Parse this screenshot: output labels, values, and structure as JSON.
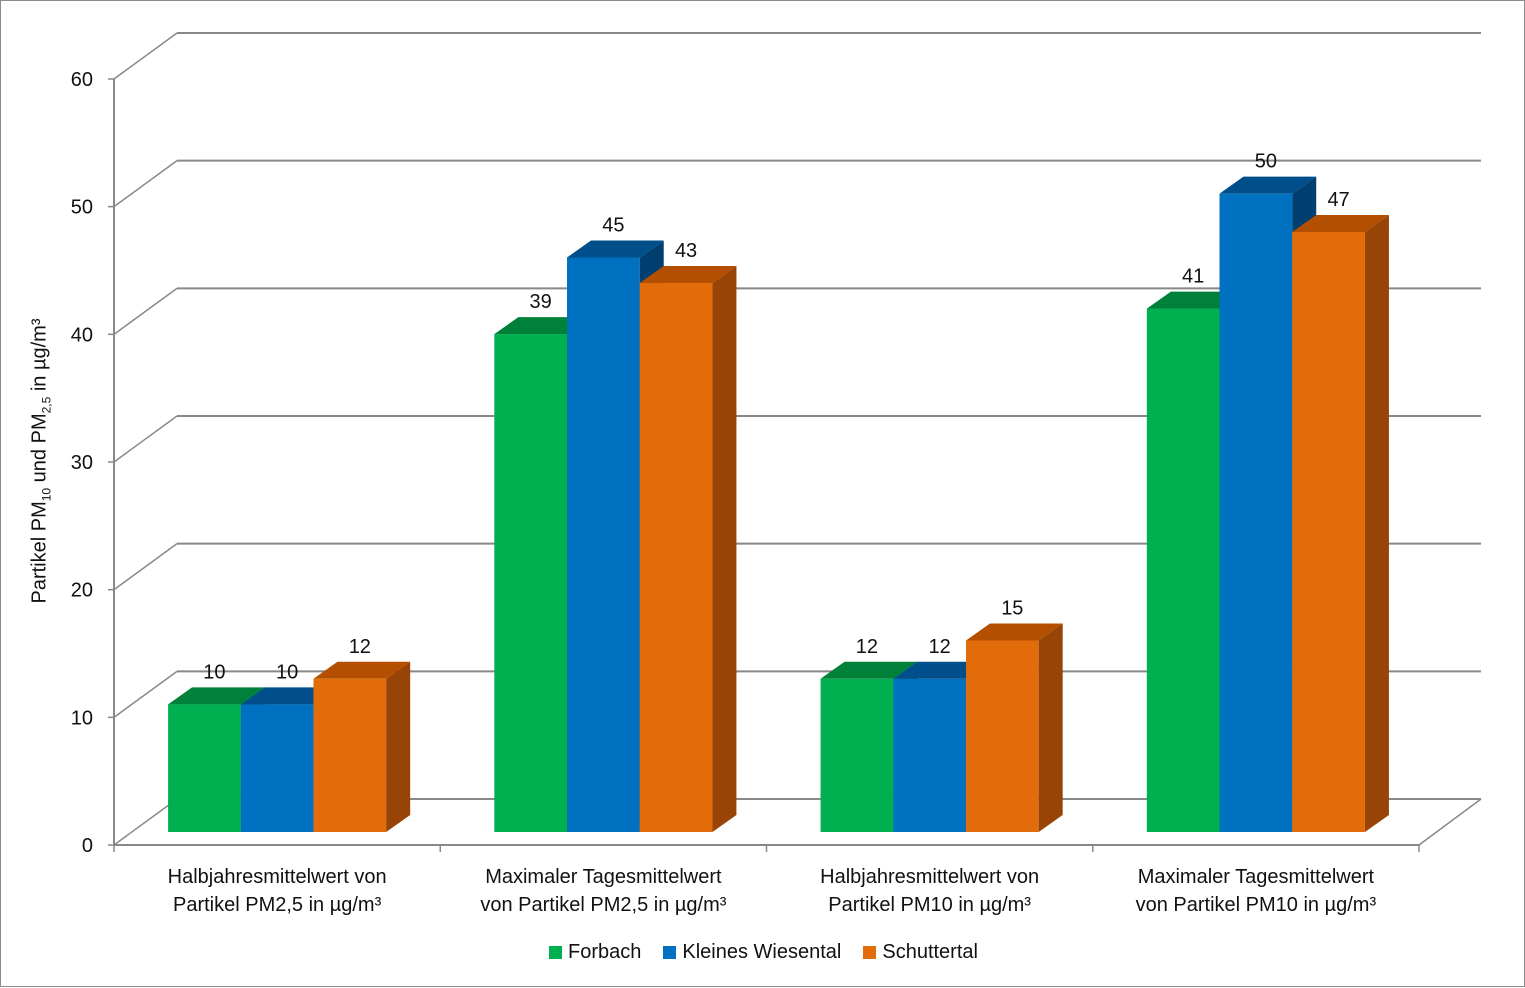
{
  "chart_data": {
    "type": "bar",
    "title": "",
    "ylabel": "Partikel PM10 und PM2,5 in µg/m³",
    "ylabel_parts": {
      "pre": "Partikel PM",
      "sub1": "10",
      "mid": " und PM",
      "sub2": "2,5",
      "post": " in µg/m³"
    },
    "xlabel": "",
    "ylim": [
      0,
      60
    ],
    "yticks": [
      "0",
      "10",
      "20",
      "30",
      "40",
      "50",
      "60"
    ],
    "categories": [
      [
        "Halbjahresmittelwert von",
        "Partikel PM2,5 in µg/m³"
      ],
      [
        "Maximaler Tagesmittelwert",
        "von Partikel PM2,5 in µg/m³"
      ],
      [
        "Halbjahresmittelwert von",
        "Partikel PM10 in µg/m³"
      ],
      [
        "Maximaler Tagesmittelwert",
        "von Partikel PM10 in µg/m³"
      ]
    ],
    "series": [
      {
        "name": "Forbach",
        "values": [
          10,
          39,
          12,
          41
        ],
        "color": "#00b050",
        "top": "#00813a",
        "side": "#00813a"
      },
      {
        "name": "Kleines Wiesental",
        "values": [
          10,
          45,
          12,
          50
        ],
        "color": "#0070c0",
        "top": "#004f8a",
        "side": "#003f70"
      },
      {
        "name": "Schuttertal",
        "values": [
          12,
          43,
          15,
          47
        ],
        "color": "#e36c0a",
        "top": "#b54f00",
        "side": "#974406"
      }
    ],
    "legend_position": "bottom",
    "grid": true
  }
}
